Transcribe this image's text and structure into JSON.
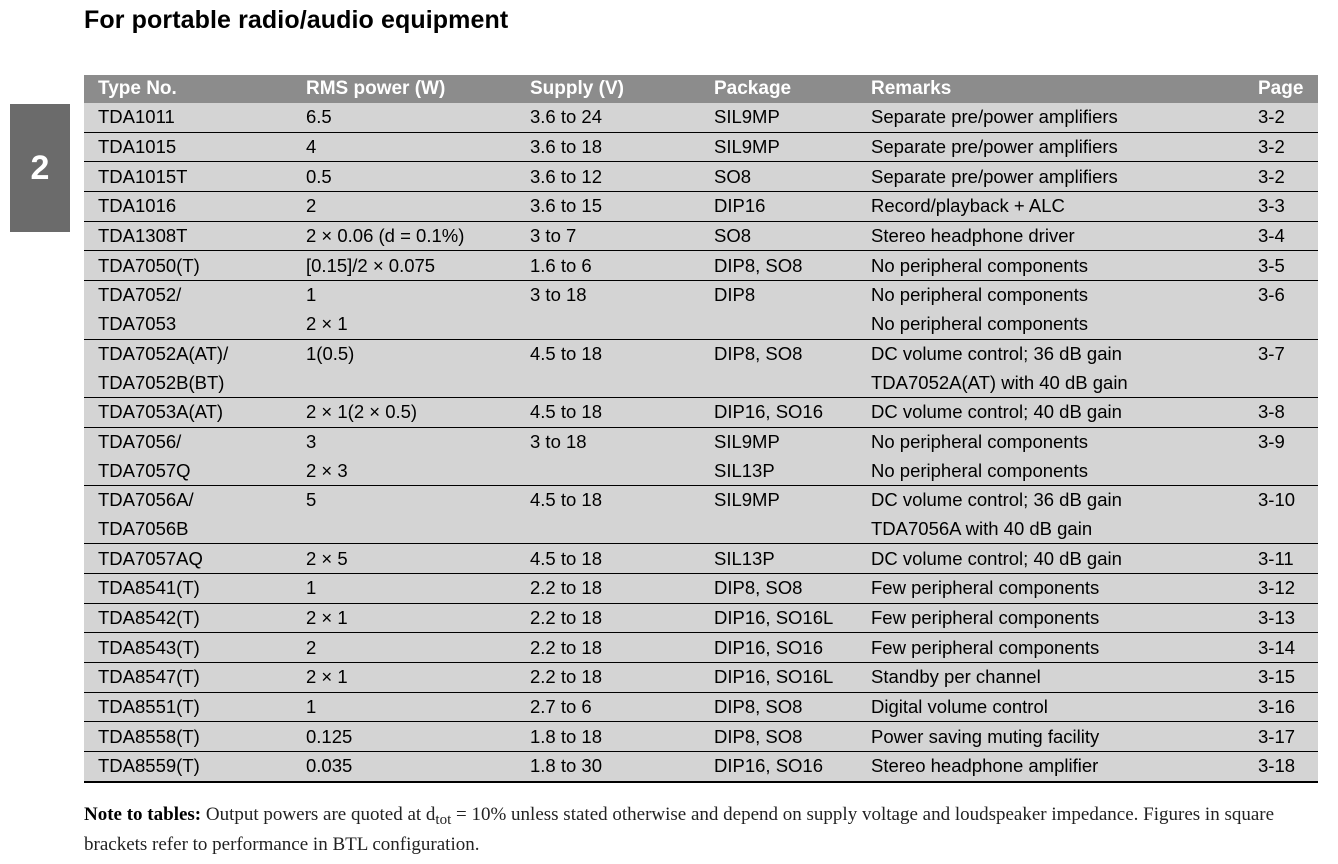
{
  "page": {
    "title": "For portable radio/audio equipment",
    "tab_label": "2"
  },
  "table": {
    "headers": [
      "Type No.",
      "RMS power (W)",
      "Supply (V)",
      "Package",
      "Remarks",
      "Page"
    ],
    "rows": [
      {
        "group_start": true,
        "cells": [
          "TDA1011",
          "6.5",
          "3.6 to 24",
          "SIL9MP",
          "Separate pre/power amplifiers",
          "3-2"
        ]
      },
      {
        "group_start": true,
        "cells": [
          "TDA1015",
          "4",
          "3.6 to 18",
          "SIL9MP",
          "Separate pre/power amplifiers",
          "3-2"
        ]
      },
      {
        "group_start": true,
        "cells": [
          "TDA1015T",
          "0.5",
          "3.6 to 12",
          "SO8",
          "Separate pre/power amplifiers",
          "3-2"
        ]
      },
      {
        "group_start": true,
        "cells": [
          "TDA1016",
          "2",
          "3.6 to 15",
          "DIP16",
          "Record/playback + ALC",
          "3-3"
        ]
      },
      {
        "group_start": true,
        "cells": [
          "TDA1308T",
          "2 × 0.06 (d = 0.1%)",
          "3 to 7",
          "SO8",
          "Stereo headphone driver",
          "3-4"
        ]
      },
      {
        "group_start": true,
        "cells": [
          "TDA7050(T)",
          "[0.15]/2 × 0.075",
          "1.6 to 6",
          "DIP8, SO8",
          "No peripheral components",
          "3-5"
        ]
      },
      {
        "group_start": true,
        "cells": [
          "TDA7052/",
          "1",
          "3 to 18",
          "DIP8",
          "No peripheral components",
          "3-6"
        ]
      },
      {
        "group_start": false,
        "cells": [
          "TDA7053",
          "2 × 1",
          "",
          "",
          "No peripheral components",
          ""
        ]
      },
      {
        "group_start": true,
        "cells": [
          "TDA7052A(AT)/",
          "1(0.5)",
          "4.5 to 18",
          "DIP8, SO8",
          "DC volume control; 36 dB gain",
          "3-7"
        ]
      },
      {
        "group_start": false,
        "cells": [
          "TDA7052B(BT)",
          "",
          "",
          "",
          "TDA7052A(AT) with 40 dB gain",
          ""
        ]
      },
      {
        "group_start": true,
        "cells": [
          "TDA7053A(AT)",
          "2 × 1(2 × 0.5)",
          "4.5 to 18",
          "DIP16, SO16",
          "DC volume control; 40 dB gain",
          "3-8"
        ]
      },
      {
        "group_start": true,
        "cells": [
          "TDA7056/",
          "3",
          "3 to 18",
          "SIL9MP",
          "No peripheral components",
          "3-9"
        ]
      },
      {
        "group_start": false,
        "cells": [
          "TDA7057Q",
          "2 × 3",
          "",
          "SIL13P",
          "No peripheral components",
          ""
        ]
      },
      {
        "group_start": true,
        "cells": [
          "TDA7056A/",
          "5",
          "4.5 to 18",
          "SIL9MP",
          "DC volume control; 36 dB gain",
          "3-10"
        ]
      },
      {
        "group_start": false,
        "cells": [
          "TDA7056B",
          "",
          "",
          "",
          "TDA7056A with 40 dB gain",
          ""
        ]
      },
      {
        "group_start": true,
        "cells": [
          "TDA7057AQ",
          "2 × 5",
          "4.5 to 18",
          "SIL13P",
          "DC volume control; 40 dB gain",
          "3-11"
        ]
      },
      {
        "group_start": true,
        "cells": [
          "TDA8541(T)",
          "1",
          "2.2 to 18",
          "DIP8, SO8",
          "Few peripheral components",
          "3-12"
        ]
      },
      {
        "group_start": true,
        "cells": [
          "TDA8542(T)",
          "2 × 1",
          "2.2 to 18",
          "DIP16, SO16L",
          "Few peripheral components",
          "3-13"
        ]
      },
      {
        "group_start": true,
        "cells": [
          "TDA8543(T)",
          "2",
          "2.2 to 18",
          "DIP16, SO16",
          "Few peripheral components",
          "3-14"
        ]
      },
      {
        "group_start": true,
        "cells": [
          "TDA8547(T)",
          "2 × 1",
          "2.2 to 18",
          "DIP16, SO16L",
          "Standby per channel",
          "3-15"
        ]
      },
      {
        "group_start": true,
        "cells": [
          "TDA8551(T)",
          "1",
          "2.7 to 6",
          "DIP8, SO8",
          "Digital volume control",
          "3-16"
        ]
      },
      {
        "group_start": true,
        "cells": [
          "TDA8558(T)",
          "0.125",
          "1.8 to 18",
          "DIP8, SO8",
          "Power saving muting facility",
          "3-17"
        ]
      },
      {
        "group_start": true,
        "cells": [
          "TDA8559(T)",
          "0.035",
          "1.8 to 30",
          "DIP16, SO16",
          "Stereo headphone amplifier",
          "3-18"
        ]
      }
    ]
  },
  "note": {
    "label": "Note to tables:",
    "text_before_sub": " Output powers are quoted at d",
    "sub": "tot",
    "text_after_sub": " = 10% unless stated otherwise and depend on supply voltage and loudspeaker impedance. Figures in square brackets refer to performance in BTL configuration."
  },
  "colors": {
    "header_bg": "#8c8c8c",
    "row_bg": "#d4d4d4",
    "tab_bg": "#6b6b6b"
  }
}
